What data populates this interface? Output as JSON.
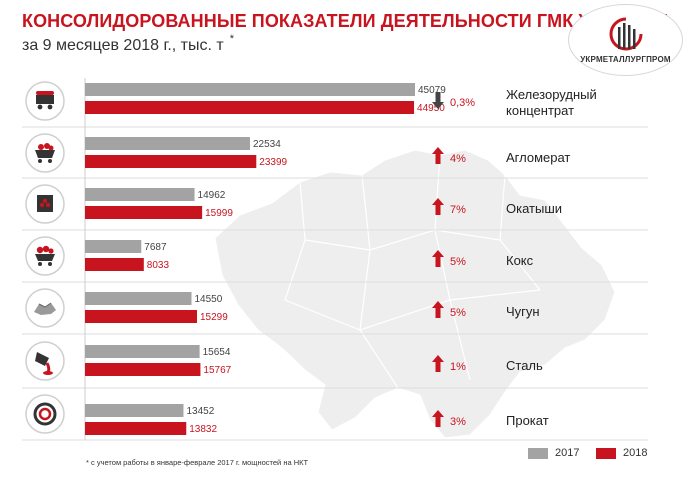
{
  "header": {
    "title": "КОНСОЛИДОРОВАННЫЕ ПОКАЗАТЕЛИ ДЕЯТЕЛЬНОСТИ ГМК УКРАИНЫ",
    "subtitle": "за 9 месяцев 2018 г., тыс. т",
    "subtitle_mark": "*"
  },
  "logo": {
    "text": "УКРМЕТАЛЛУРГПРОМ"
  },
  "colors": {
    "accent": "#c8141e",
    "bar_2017": "#a3a3a3",
    "bar_2018": "#c8141e",
    "map": "#eeeeee"
  },
  "chart_data": {
    "type": "bar",
    "orientation": "horizontal",
    "categories": [
      "Железорудный концентрат",
      "Агломерат",
      "Окатыши",
      "Кокс",
      "Чугун",
      "Сталь",
      "Прокат"
    ],
    "category_icons": [
      "ore-wagon-icon",
      "sinter-wagon-icon",
      "pellet-bag-icon",
      "coke-wagon-icon",
      "pig-iron-icon",
      "steel-ladle-icon",
      "steel-coil-icon"
    ],
    "series": [
      {
        "name": "2017",
        "color": "#a3a3a3",
        "values": [
          45079,
          22534,
          14962,
          7687,
          14550,
          15654,
          13452
        ]
      },
      {
        "name": "2018",
        "color": "#c8141e",
        "values": [
          44950,
          23399,
          15999,
          8033,
          15299,
          15767,
          13832
        ]
      }
    ],
    "changes": [
      {
        "direction": "down",
        "label": "0,3%"
      },
      {
        "direction": "up",
        "label": "4%"
      },
      {
        "direction": "up",
        "label": "7%"
      },
      {
        "direction": "up",
        "label": "5%"
      },
      {
        "direction": "up",
        "label": "5%"
      },
      {
        "direction": "up",
        "label": "1%"
      },
      {
        "direction": "up",
        "label": "3%"
      }
    ],
    "legend_position": "bottom-right",
    "grid": false
  },
  "footnote": "* с учетом работы в январе-феврале 2017 г. мощностей на НКТ"
}
